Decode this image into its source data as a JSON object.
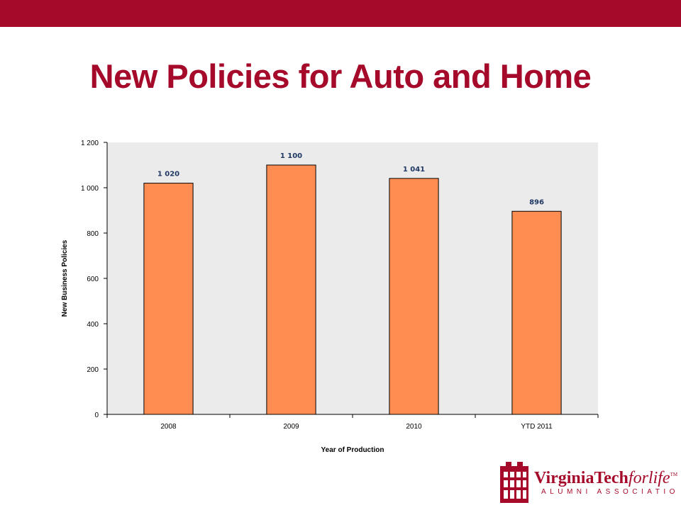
{
  "slide": {
    "title": "New Policies for Auto and Home"
  },
  "colors": {
    "brand": "#a50a2a",
    "bar_fill": "#ff8c50",
    "plot_bg": "#ebebeb",
    "data_label": "#1f3864"
  },
  "logo": {
    "line1_a": "VirginiaTech",
    "line1_b": "forlife",
    "tm": "TM",
    "line2": "ALUMNI ASSOCIATION"
  },
  "chart_data": {
    "type": "bar",
    "title": "",
    "xlabel": "Year of Production",
    "ylabel": "New Business Policies",
    "categories": [
      "2008",
      "2009",
      "2010",
      "YTD 2011"
    ],
    "series": [
      {
        "values": [
          1020,
          1100,
          1041,
          896
        ],
        "labels": [
          "1 020",
          "1 100",
          "1 041",
          "896"
        ]
      }
    ],
    "ylim": [
      0,
      1200
    ],
    "yticks": [
      0,
      200,
      400,
      600,
      800,
      1000,
      1200
    ],
    "ytick_labels": [
      "0",
      "200",
      "400",
      "600",
      "800",
      "1 000",
      "1 200"
    ],
    "grid": false,
    "legend": "none"
  }
}
